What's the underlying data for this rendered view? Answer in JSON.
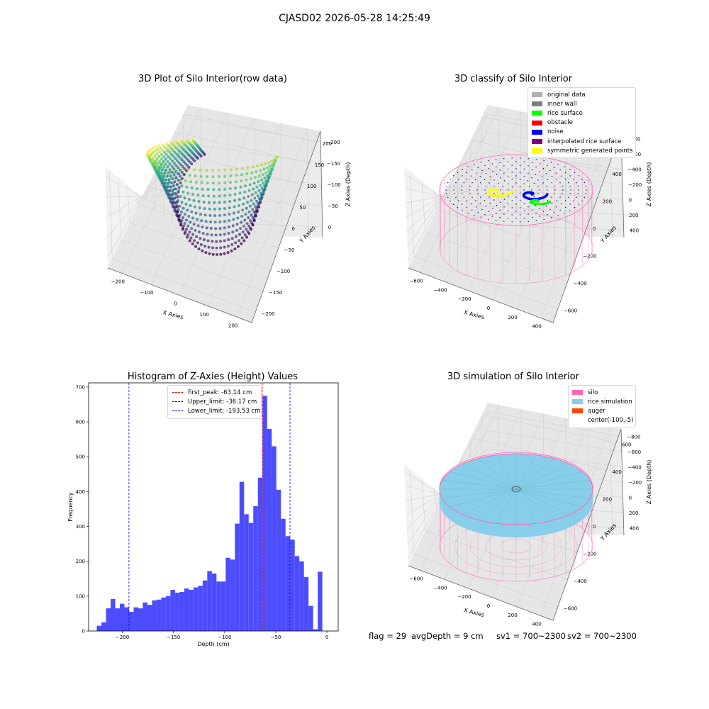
{
  "suptitle": "CJASD02 2026-05-28 14:25:49",
  "colors": {
    "silo": "#ff69b4",
    "rice_simulation": "#87ceeb",
    "auger": "#ff4500",
    "histogram_bar": "#4c4cff",
    "first_peak": "#ff0000",
    "limit": "#0000ff"
  },
  "panels": {
    "raw": {
      "title": "3D Plot of Silo Interior(row data)",
      "xlabel": "X Axies",
      "ylabel": "Y Axies",
      "zlabel": "Z Axies (Depth)",
      "xticks": [
        "−200",
        "−100",
        "0",
        "100",
        "200"
      ],
      "yticks": [
        "−200",
        "−150",
        "−100",
        "−50",
        "0",
        "50",
        "100",
        "150",
        "200"
      ],
      "zticks": [
        "0",
        "−50",
        "−100",
        "−150",
        "−200"
      ]
    },
    "classify": {
      "title": "3D classify of Silo Interior",
      "xlabel": "X Axies",
      "ylabel": "Y Axies",
      "zlabel": "Z Axies (Depth)",
      "xticks": [
        "−600",
        "−400",
        "−200",
        "0",
        "200",
        "400"
      ],
      "yticks": [
        "−600",
        "−400",
        "−200",
        "0",
        "200",
        "400",
        "600"
      ],
      "zticks": [
        "400",
        "200",
        "0",
        "−200",
        "−400",
        "−600",
        "−800"
      ],
      "legend": [
        {
          "label": "original data",
          "color": "#b0b0b0"
        },
        {
          "label": "inner wall",
          "color": "#808080"
        },
        {
          "label": "rice surface",
          "color": "#00ff00"
        },
        {
          "label": "obstacle",
          "color": "#ff0000"
        },
        {
          "label": "noise",
          "color": "#0000ff"
        },
        {
          "label": "interpolated rice surface",
          "color": "#800080"
        },
        {
          "label": "symmetric generated points",
          "color": "#ffff00"
        }
      ]
    },
    "simulation": {
      "title": "3D simulation of Silo Interior",
      "xlabel": "X Axies",
      "ylabel": "Y Axies",
      "zlabel": "Z Axies (Depth)",
      "xticks": [
        "−600",
        "−400",
        "−200",
        "0",
        "200",
        "400"
      ],
      "yticks": [
        "−600",
        "−400",
        "−200",
        "0",
        "200",
        "400",
        "600"
      ],
      "zticks": [
        "400",
        "200",
        "0",
        "−200",
        "−400",
        "−600",
        "−800"
      ],
      "legend": [
        {
          "label": "silo",
          "color": "#ff69b4"
        },
        {
          "label": "rice simulation",
          "color": "#87ceeb"
        },
        {
          "label": "auger",
          "color": "#ff4500"
        },
        {
          "label": "center(-100,-5)",
          "color": "transparent"
        }
      ]
    }
  },
  "footer": {
    "flag": "flag = 29",
    "avg_depth": "avgDepth = 9 cm",
    "sv1": "sv1 = 700~2300",
    "sv2": "sv2 = 700~2300"
  },
  "chart_data": [
    {
      "type": "histogram",
      "title": "Histogram of Z-Axies (Height) Values",
      "xlabel": "Depth (cm)",
      "ylabel": "Frequency",
      "xlim": [
        -233,
        11
      ],
      "ylim": [
        0,
        712
      ],
      "xticks": [
        -200,
        -150,
        -100,
        -50,
        0
      ],
      "xtick_labels": [
        "−200",
        "−150",
        "−100",
        "−50",
        "0"
      ],
      "yticks": [
        0,
        100,
        200,
        300,
        400,
        500,
        600,
        700
      ],
      "bin_start": -225,
      "bin_width": 4.5,
      "values": [
        15,
        25,
        65,
        92,
        65,
        78,
        68,
        55,
        68,
        65,
        82,
        75,
        88,
        90,
        96,
        100,
        118,
        110,
        112,
        122,
        118,
        125,
        130,
        145,
        172,
        165,
        142,
        142,
        210,
        205,
        308,
        428,
        335,
        310,
        358,
        440,
        675,
        580,
        530,
        405,
        322,
        272,
        262,
        215,
        200,
        155,
        72,
        5,
        170
      ],
      "bar_color": "#4c4cff",
      "lines": [
        {
          "label": "first_peak: -63.14 cm",
          "x": -63.14,
          "color": "#ff0000"
        },
        {
          "label": "Upper_limit: -36.17 cm",
          "x": -36.17,
          "color": "#0000ff"
        },
        {
          "label": "Lower_limit: -193.53 cm",
          "x": -193.53,
          "color": "#0000ff"
        }
      ],
      "legend_position": "upper-center"
    }
  ]
}
